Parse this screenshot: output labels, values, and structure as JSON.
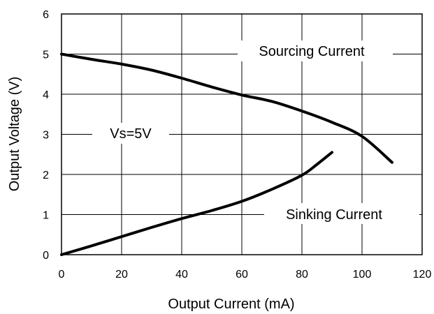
{
  "chart_data": {
    "type": "line",
    "title": "",
    "xlabel": "Output Current (mA)",
    "ylabel": "Output Voltage (V)",
    "xlim": [
      0,
      120
    ],
    "ylim": [
      0,
      6
    ],
    "x_ticks": [
      "0",
      "20",
      "40",
      "60",
      "80",
      "100",
      "120"
    ],
    "y_ticks": [
      "0",
      "1",
      "2",
      "3",
      "4",
      "5",
      "6"
    ],
    "grid": true,
    "line_color": "#000000",
    "series": [
      {
        "name": "Sourcing Current",
        "points": [
          [
            0,
            5.0
          ],
          [
            10,
            4.87
          ],
          [
            20,
            4.75
          ],
          [
            30,
            4.6
          ],
          [
            40,
            4.4
          ],
          [
            50,
            4.18
          ],
          [
            60,
            3.98
          ],
          [
            70,
            3.82
          ],
          [
            80,
            3.58
          ],
          [
            90,
            3.3
          ],
          [
            100,
            2.95
          ],
          [
            110,
            2.3
          ]
        ]
      },
      {
        "name": "Sinking Current",
        "points": [
          [
            0,
            0.0
          ],
          [
            10,
            0.22
          ],
          [
            20,
            0.45
          ],
          [
            30,
            0.68
          ],
          [
            40,
            0.9
          ],
          [
            50,
            1.1
          ],
          [
            60,
            1.33
          ],
          [
            70,
            1.63
          ],
          [
            80,
            1.98
          ],
          [
            85,
            2.25
          ],
          [
            90,
            2.55
          ]
        ]
      }
    ],
    "annotations": {
      "sourcing": "Sourcing Current",
      "sinking": "Sinking Current",
      "supply": "Vs=5V"
    }
  }
}
